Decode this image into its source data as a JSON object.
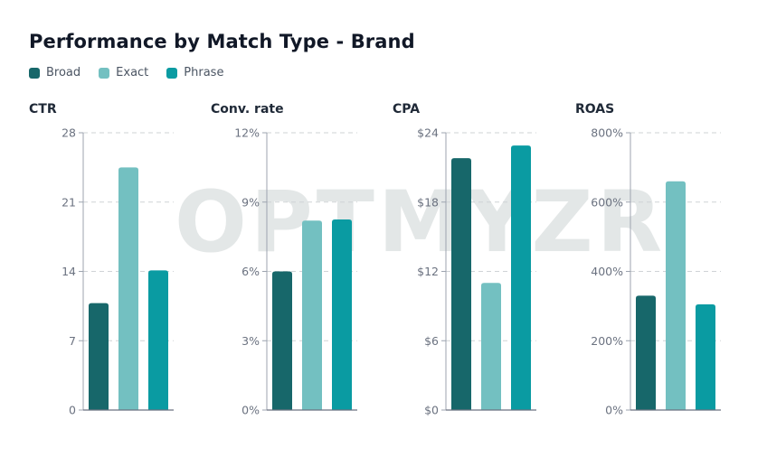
{
  "title": "Performance by Match Type - Brand",
  "watermark": "OPTMYZR",
  "legend": [
    {
      "label": "Broad",
      "color": "#17676a"
    },
    {
      "label": "Exact",
      "color": "#73c0c1"
    },
    {
      "label": "Phrase",
      "color": "#0a9ba2"
    }
  ],
  "chart_data": [
    {
      "type": "bar",
      "title": "CTR",
      "categories": [
        "Broad",
        "Exact",
        "Phrase"
      ],
      "values": [
        10.8,
        24.5,
        14.1
      ],
      "ylim": [
        0,
        28
      ],
      "ticks": [
        "0",
        "7",
        "14",
        "21",
        "28"
      ],
      "tick_values": [
        0,
        7,
        14,
        21,
        28
      ],
      "grid": true
    },
    {
      "type": "bar",
      "title": "Conv. rate",
      "categories": [
        "Broad",
        "Exact",
        "Phrase"
      ],
      "values": [
        6.0,
        8.2,
        8.25
      ],
      "ylim": [
        0,
        12
      ],
      "ticks": [
        "0%",
        "3%",
        "6%",
        "9%",
        "12%"
      ],
      "tick_values": [
        0,
        3,
        6,
        9,
        12
      ],
      "grid": true
    },
    {
      "type": "bar",
      "title": "CPA",
      "categories": [
        "Broad",
        "Exact",
        "Phrase"
      ],
      "values": [
        21.8,
        11.0,
        22.9
      ],
      "ylim": [
        0,
        24
      ],
      "ticks": [
        "$0",
        "$6",
        "$12",
        "$18",
        "$24"
      ],
      "tick_values": [
        0,
        6,
        12,
        18,
        24
      ],
      "grid": true
    },
    {
      "type": "bar",
      "title": "ROAS",
      "categories": [
        "Broad",
        "Exact",
        "Phrase"
      ],
      "values": [
        330,
        660,
        305
      ],
      "ylim": [
        0,
        800
      ],
      "ticks": [
        "0%",
        "200%",
        "400%",
        "600%",
        "800%"
      ],
      "tick_values": [
        0,
        200,
        400,
        600,
        800
      ],
      "grid": true
    }
  ]
}
